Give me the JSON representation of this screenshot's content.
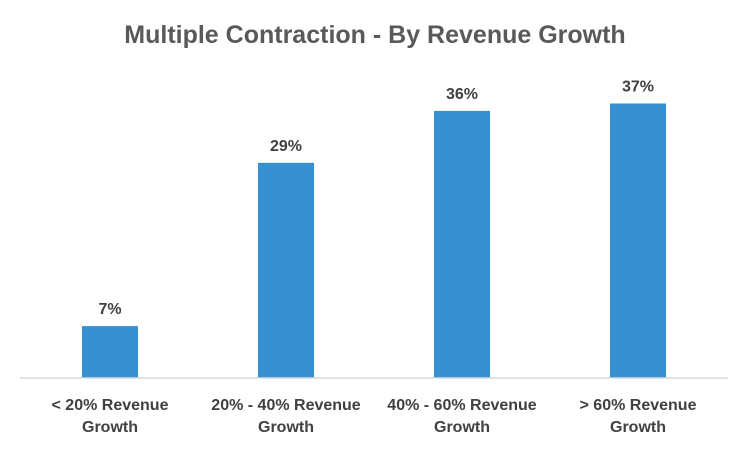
{
  "chart_data": {
    "type": "bar",
    "title": "Multiple Contraction - By Revenue Growth",
    "categories": [
      [
        "< 20% Revenue",
        "Growth"
      ],
      [
        "20% - 40% Revenue",
        "Growth"
      ],
      [
        "40% - 60% Revenue",
        "Growth"
      ],
      [
        "> 60% Revenue",
        "Growth"
      ]
    ],
    "values": [
      7,
      29,
      36,
      37
    ],
    "value_labels": [
      "7%",
      "29%",
      "36%",
      "37%"
    ],
    "unit": "%",
    "ylim": [
      0,
      42
    ],
    "grid": false,
    "xlabel": "",
    "ylabel": "",
    "colors": {
      "bar": "#3790CF",
      "axis": "#D9D9D9"
    }
  }
}
